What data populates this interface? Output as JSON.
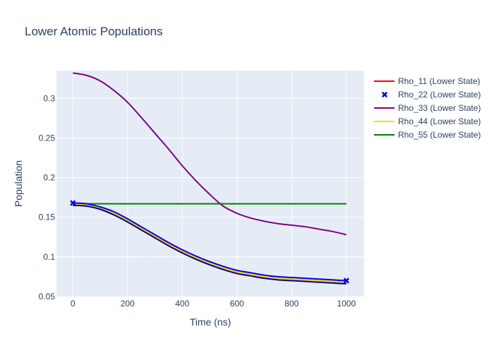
{
  "chart_data": {
    "type": "line",
    "title": "Lower Atomic Populations",
    "xlabel": "Time (ns)",
    "ylabel": "Population",
    "xlim": [
      -60,
      1065
    ],
    "ylim": [
      0.05,
      0.335
    ],
    "grid": true,
    "legend_position": "right",
    "x_ticks": [
      0,
      200,
      400,
      600,
      800,
      1000
    ],
    "x_tick_labels": [
      "0",
      "200",
      "400",
      "600",
      "800",
      "1000"
    ],
    "y_ticks": [
      0.05,
      0.1,
      0.15,
      0.2,
      0.25,
      0.3
    ],
    "y_tick_labels": [
      "0.05",
      "0.1",
      "0.15",
      "0.2",
      "0.25",
      "0.3"
    ],
    "x": [
      0,
      50,
      100,
      150,
      200,
      250,
      300,
      350,
      400,
      450,
      500,
      550,
      600,
      650,
      700,
      750,
      800,
      850,
      900,
      950,
      1000
    ],
    "series": [
      {
        "name": "Rho_11 (Lower State)",
        "mode": "line",
        "color": "#ff0000",
        "values": [
          0.167,
          0.166,
          0.162,
          0.155,
          0.146,
          0.136,
          0.126,
          0.116,
          0.107,
          0.099,
          0.092,
          0.086,
          0.081,
          0.078,
          0.075,
          0.073,
          0.072,
          0.071,
          0.07,
          0.069,
          0.068
        ]
      },
      {
        "name": "Rho_22 (Lower State)",
        "mode": "line+endpoint-markers",
        "marker": "x",
        "color": "#0000ff",
        "values": [
          0.168,
          0.167,
          0.163,
          0.157,
          0.148,
          0.138,
          0.128,
          0.118,
          0.109,
          0.101,
          0.094,
          0.088,
          0.083,
          0.08,
          0.077,
          0.075,
          0.074,
          0.073,
          0.072,
          0.071,
          0.07
        ]
      },
      {
        "name": "Rho_33 (Lower State)",
        "mode": "line",
        "color": "#800080",
        "values": [
          0.332,
          0.329,
          0.322,
          0.31,
          0.295,
          0.276,
          0.256,
          0.236,
          0.215,
          0.196,
          0.179,
          0.164,
          0.155,
          0.149,
          0.145,
          0.142,
          0.14,
          0.138,
          0.135,
          0.132,
          0.128
        ]
      },
      {
        "name": "Rho_44 (Lower State)",
        "mode": "line",
        "color": "#ffd700",
        "values": [
          0.167,
          0.166,
          0.162,
          0.155,
          0.146,
          0.136,
          0.126,
          0.116,
          0.107,
          0.099,
          0.092,
          0.086,
          0.081,
          0.078,
          0.075,
          0.073,
          0.072,
          0.071,
          0.07,
          0.069,
          0.068
        ]
      },
      {
        "name": "Rho_55 (Lower State)",
        "mode": "line",
        "color": "#008000",
        "values": [
          0.167,
          0.167,
          0.167,
          0.167,
          0.167,
          0.167,
          0.167,
          0.167,
          0.167,
          0.167,
          0.167,
          0.167,
          0.167,
          0.167,
          0.167,
          0.167,
          0.167,
          0.167,
          0.167,
          0.167,
          0.167
        ]
      },
      {
        "name": "",
        "mode": "line",
        "color": "#00008b",
        "values": [
          0.165,
          0.164,
          0.16,
          0.153,
          0.144,
          0.134,
          0.124,
          0.114,
          0.105,
          0.097,
          0.09,
          0.084,
          0.079,
          0.076,
          0.073,
          0.071,
          0.07,
          0.069,
          0.068,
          0.067,
          0.066
        ],
        "show_in_legend": false
      }
    ]
  }
}
